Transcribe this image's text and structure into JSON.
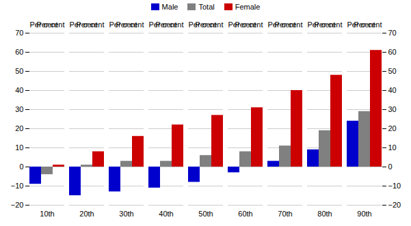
{
  "chart_data": {
    "type": "bar",
    "categories": [
      "10th",
      "20th",
      "30th",
      "40th",
      "50th",
      "60th",
      "70th",
      "80th",
      "90th"
    ],
    "series": [
      {
        "name": "Male",
        "color": "#0000cc",
        "values": [
          -9,
          -15,
          -13,
          -11,
          -8,
          -3,
          3,
          9,
          24
        ]
      },
      {
        "name": "Total",
        "color": "#808080",
        "values": [
          -4,
          1,
          3,
          3,
          6,
          8,
          11,
          19,
          29
        ]
      },
      {
        "name": "Female",
        "color": "#cc0000",
        "values": [
          1,
          8,
          16,
          22,
          27,
          31,
          40,
          48,
          61
        ]
      }
    ],
    "ylabel": "Per cent",
    "y2label": "Per cent",
    "ylim": [
      -20,
      70
    ],
    "yticks": [
      -20,
      -10,
      0,
      10,
      20,
      30,
      40,
      50,
      60,
      70
    ],
    "y2lim": [
      -20,
      70
    ],
    "y2ticks": [
      -20,
      -10,
      0,
      10,
      20,
      30,
      40,
      50,
      60,
      70
    ],
    "grid": true,
    "legend": "upper center"
  }
}
